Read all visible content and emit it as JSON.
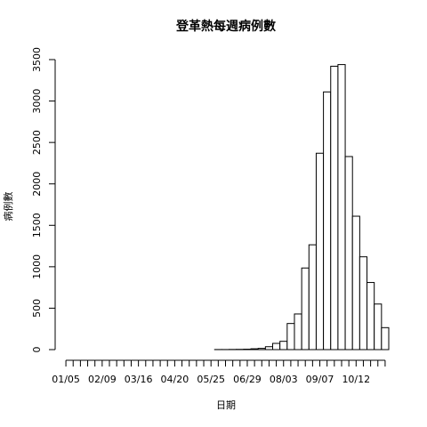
{
  "chart_data": {
    "type": "bar",
    "title": "登革熱每週病例數",
    "x_label": "日期",
    "y_label": "病例數",
    "categories": [
      "01/05",
      null,
      null,
      null,
      null,
      "02/09",
      null,
      null,
      null,
      null,
      "03/16",
      null,
      null,
      null,
      null,
      "04/20",
      null,
      null,
      null,
      null,
      "05/25",
      null,
      null,
      null,
      null,
      "06/29",
      null,
      null,
      null,
      null,
      "08/03",
      null,
      null,
      null,
      null,
      "09/07",
      null,
      null,
      null,
      null,
      "10/12",
      null,
      null,
      null,
      null
    ],
    "values": [
      0,
      0,
      0,
      0,
      0,
      0,
      0,
      0,
      0,
      0,
      0,
      0,
      0,
      0,
      0,
      0,
      0,
      0,
      0,
      0,
      0,
      1,
      1,
      2,
      3,
      5,
      10,
      15,
      35,
      75,
      100,
      315,
      430,
      985,
      1265,
      2370,
      3110,
      3420,
      3440,
      2330,
      1610,
      1120,
      810,
      550,
      265
    ],
    "color": "#ffffff",
    "edge_color": "#000000",
    "ylim": [
      0,
      3500
    ],
    "yticks": [
      0,
      500,
      1000,
      1500,
      2000,
      2500,
      3000,
      3500
    ]
  }
}
